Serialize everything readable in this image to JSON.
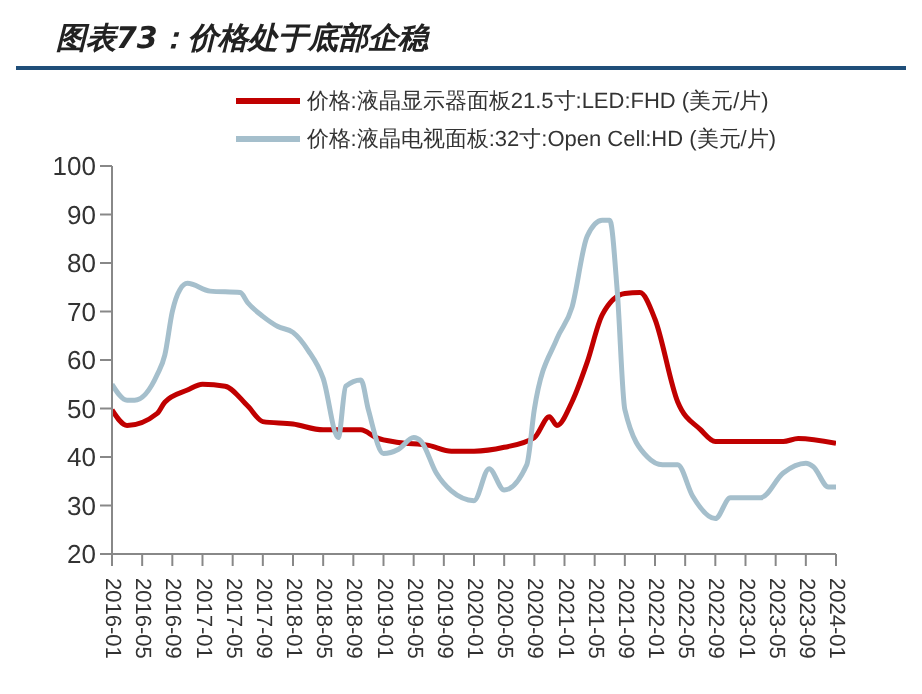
{
  "chart_data": {
    "type": "line",
    "title": "图表73：价格处于底部企稳",
    "xlim": [
      "2016-01",
      "2024-01"
    ],
    "xticks": [
      "2016-01",
      "2016-05",
      "2016-09",
      "2017-01",
      "2017-05",
      "2017-09",
      "2018-01",
      "2018-05",
      "2018-09",
      "2019-01",
      "2019-05",
      "2019-09",
      "2020-01",
      "2020-05",
      "2020-09",
      "2021-01",
      "2021-05",
      "2021-09",
      "2022-01",
      "2022-05",
      "2022-09",
      "2023-01",
      "2023-05",
      "2023-09",
      "2024-01"
    ],
    "ylim": [
      20,
      100
    ],
    "yticks": [
      20,
      30,
      40,
      50,
      60,
      70,
      80,
      90,
      100
    ],
    "grid": false,
    "legend": "top right",
    "marker": "none",
    "line_style": "solid",
    "series": [
      {
        "name": "价格:液晶显示器面板21.5寸:LED:FHD  (美元/片)",
        "color": "#c00000",
        "x": [
          "2016-01",
          "2016-03",
          "2016-07",
          "2016-08",
          "2016-11",
          "2017-01",
          "2017-04",
          "2017-07",
          "2017-09",
          "2018-01",
          "2018-05",
          "2018-10",
          "2018-12",
          "2019-03",
          "2019-07",
          "2019-10",
          "2020-01",
          "2020-05",
          "2020-09",
          "2020-11",
          "2020-12",
          "2021-02",
          "2021-04",
          "2021-06",
          "2021-09",
          "2021-11",
          "2022-01",
          "2022-04",
          "2022-07",
          "2022-09",
          "2023-06",
          "2023-08",
          "2024-01"
        ],
        "values": [
          49.7,
          46.5,
          49,
          51.3,
          53.8,
          55,
          54.6,
          50.5,
          47.3,
          46.8,
          45.6,
          45.6,
          44,
          43,
          42.4,
          41.2,
          41.2,
          42,
          44,
          48.3,
          46.5,
          51.4,
          59.5,
          69.3,
          73.7,
          73.9,
          68.4,
          51.4,
          45.7,
          43.2,
          43.2,
          43.8,
          42.8
        ]
      },
      {
        "name": "价格:液晶电视面板:32寸:Open Cell:HD  (美元/片)",
        "color": "#a5bfcc",
        "x": [
          "2016-01",
          "2016-03",
          "2016-04",
          "2016-07",
          "2016-08",
          "2016-09",
          "2016-10",
          "2016-11",
          "2017-02",
          "2017-06",
          "2017-07",
          "2017-09",
          "2017-11",
          "2018-01",
          "2018-03",
          "2018-05",
          "2018-07",
          "2018-08",
          "2018-10",
          "2018-11",
          "2019-01",
          "2019-03",
          "2019-05",
          "2019-06",
          "2019-08",
          "2019-10",
          "2020-01",
          "2020-03",
          "2020-05",
          "2020-08",
          "2020-09",
          "2020-12",
          "2021-02",
          "2021-04",
          "2021-06",
          "2021-07",
          "2021-08",
          "2021-09",
          "2021-12",
          "2022-02",
          "2022-04",
          "2022-06",
          "2022-09",
          "2022-11",
          "2023-03",
          "2023-06",
          "2023-09",
          "2023-10",
          "2023-12",
          "2024-01"
        ],
        "values": [
          55,
          51.7,
          51.7,
          57,
          61,
          70,
          74.5,
          75.8,
          74.2,
          73.9,
          71.8,
          69,
          66.9,
          65.7,
          62,
          56.2,
          44,
          54.6,
          55.9,
          49.7,
          40.7,
          41.6,
          44,
          43.2,
          36.7,
          33,
          31,
          37.6,
          33.2,
          38.4,
          49.8,
          64.4,
          70.9,
          85.5,
          88.8,
          88.8,
          74.1,
          49.8,
          40,
          38.4,
          38.4,
          31.9,
          27.3,
          31.6,
          31.6,
          36.7,
          38.7,
          38,
          33.8,
          33.8
        ]
      }
    ]
  }
}
